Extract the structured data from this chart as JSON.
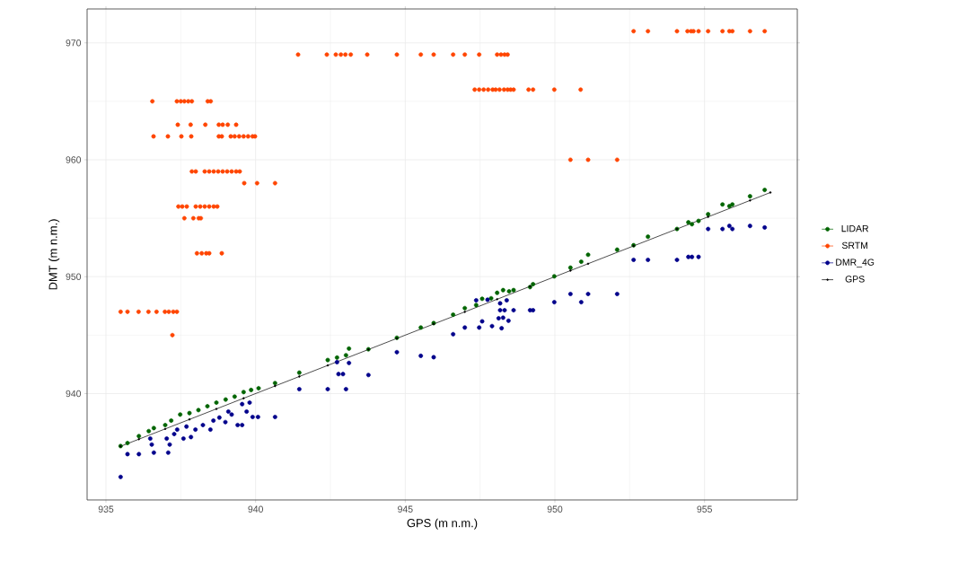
{
  "chart_data": {
    "type": "scatter",
    "xlabel": "GPS (m n.m.)",
    "ylabel": "DMT (m n.m.)",
    "xlim": [
      934.37,
      958.1
    ],
    "ylim": [
      930.9,
      972.9
    ],
    "xticks": [
      935,
      940,
      945,
      950,
      955
    ],
    "yticks": [
      940,
      950,
      960,
      970
    ],
    "grid": true,
    "legend": "right",
    "marker": "circle",
    "series": [
      {
        "name": "LIDAR",
        "color": "#006400",
        "x": [
          935.49,
          935.72,
          936.1,
          936.43,
          936.6,
          936.98,
          937.18,
          937.48,
          937.79,
          938.09,
          938.39,
          938.69,
          939.0,
          939.3,
          939.6,
          939.85,
          940.1,
          940.65,
          941.46,
          942.41,
          942.72,
          943.02,
          943.12,
          943.77,
          944.72,
          945.52,
          945.95,
          946.6,
          946.99,
          947.37,
          947.57,
          947.87,
          948.07,
          948.27,
          948.47,
          948.62,
          949.17,
          949.27,
          949.98,
          950.52,
          950.88,
          951.11,
          952.08,
          952.63,
          953.11,
          954.08,
          954.46,
          954.58,
          954.8,
          955.12,
          955.6,
          955.83,
          955.93,
          956.52,
          957.01
        ],
        "values": [
          935.51,
          935.77,
          936.36,
          936.79,
          937.05,
          937.31,
          937.69,
          938.21,
          938.33,
          938.59,
          938.92,
          939.23,
          939.49,
          939.74,
          940.13,
          940.31,
          940.46,
          940.9,
          941.79,
          942.87,
          943.08,
          943.28,
          943.85,
          943.79,
          944.77,
          945.65,
          946.03,
          946.75,
          947.31,
          947.57,
          948.11,
          948.15,
          948.62,
          948.85,
          948.75,
          948.85,
          949.11,
          949.36,
          950.03,
          950.77,
          951.28,
          951.88,
          952.31,
          952.69,
          953.42,
          954.08,
          954.65,
          954.49,
          954.77,
          955.34,
          956.18,
          956.03,
          956.18,
          956.88,
          957.42
        ]
      },
      {
        "name": "SRTM",
        "color": "#ff4500",
        "x": [
          941.42,
          942.38,
          942.68,
          942.85,
          943.0,
          943.18,
          943.73,
          944.72,
          945.52,
          945.95,
          946.6,
          946.99,
          947.47,
          948.07,
          948.2,
          948.32,
          948.42,
          936.55,
          937.37,
          937.5,
          937.62,
          937.75,
          937.87,
          938.4,
          938.5,
          937.4,
          937.83,
          938.32,
          938.77,
          938.9,
          939.07,
          939.35,
          936.59,
          937.07,
          937.52,
          937.85,
          938.77,
          938.87,
          939.17,
          939.3,
          939.45,
          939.6,
          939.75,
          939.9,
          939.98,
          937.87,
          938.0,
          938.3,
          938.45,
          938.6,
          938.75,
          938.9,
          939.05,
          939.2,
          939.35,
          939.47,
          939.62,
          940.05,
          940.65,
          937.42,
          937.55,
          937.7,
          938.0,
          938.15,
          938.3,
          938.45,
          938.6,
          938.72,
          937.62,
          937.92,
          938.1,
          938.17,
          938.04,
          938.2,
          938.35,
          938.45,
          938.87,
          935.49,
          935.72,
          936.09,
          936.42,
          936.69,
          936.97,
          937.1,
          937.25,
          937.37,
          937.22,
          952.63,
          953.11,
          954.08,
          954.43,
          954.55,
          954.63,
          954.8,
          955.12,
          955.6,
          955.83,
          955.93,
          956.52,
          957.01,
          947.32,
          947.47,
          947.62,
          947.77,
          947.92,
          948.02,
          948.15,
          948.3,
          948.42,
          948.52,
          948.62,
          949.12,
          949.27,
          949.98,
          950.86,
          950.52,
          951.11,
          952.08
        ],
        "values": [
          969,
          969,
          969,
          969,
          969,
          969,
          969,
          969,
          969,
          969,
          969,
          969,
          969,
          969,
          969,
          969,
          969,
          965,
          965,
          965,
          965,
          965,
          965,
          965,
          965,
          963,
          963,
          963,
          963,
          963,
          963,
          963,
          962,
          962,
          962,
          962,
          962,
          962,
          962,
          962,
          962,
          962,
          962,
          962,
          962,
          959,
          959,
          959,
          959,
          959,
          959,
          959,
          959,
          959,
          959,
          959,
          958,
          958,
          958,
          956,
          956,
          956,
          956,
          956,
          956,
          956,
          956,
          956,
          955,
          955,
          955,
          955,
          952,
          952,
          952,
          952,
          952,
          947,
          947,
          947,
          947,
          947,
          947,
          947,
          947,
          947,
          945,
          971,
          971,
          971,
          971,
          971,
          971,
          971,
          971,
          971,
          971,
          971,
          971,
          971,
          966,
          966,
          966,
          966,
          966,
          966,
          966,
          966,
          966,
          966,
          966,
          966,
          966,
          966,
          966,
          960,
          960,
          960
        ]
      },
      {
        "name": "DMR_4G",
        "color": "#00008b",
        "x": [
          935.49,
          935.72,
          936.1,
          936.6,
          937.08,
          936.48,
          936.53,
          937.03,
          937.13,
          937.28,
          937.59,
          937.84,
          937.38,
          937.69,
          937.99,
          938.24,
          938.49,
          938.59,
          938.79,
          938.99,
          939.2,
          939.4,
          939.55,
          939.7,
          939.8,
          939.9,
          940.08,
          940.65,
          939.55,
          939.09,
          941.46,
          942.41,
          943.02,
          942.77,
          942.92,
          942.72,
          943.12,
          943.77,
          944.72,
          945.52,
          945.95,
          946.6,
          946.99,
          947.47,
          947.57,
          947.9,
          948.22,
          948.12,
          948.27,
          948.45,
          948.17,
          948.32,
          948.62,
          948.17,
          948.39,
          947.37,
          947.75,
          949.17,
          949.27,
          949.98,
          950.52,
          950.88,
          951.11,
          952.08,
          952.63,
          953.11,
          954.08,
          954.46,
          954.58,
          954.8,
          955.12,
          955.6,
          955.83,
          955.93,
          956.52,
          957.01
        ],
        "values": [
          932.87,
          934.82,
          934.82,
          934.95,
          934.95,
          936.15,
          935.64,
          936.15,
          935.64,
          936.54,
          936.15,
          936.28,
          936.92,
          937.18,
          936.92,
          937.31,
          936.92,
          937.69,
          937.95,
          937.56,
          938.21,
          937.31,
          937.31,
          938.46,
          939.23,
          938.0,
          938.0,
          938.0,
          939.1,
          938.46,
          940.38,
          940.38,
          940.38,
          941.67,
          941.67,
          942.69,
          942.62,
          941.59,
          943.54,
          943.23,
          943.11,
          945.08,
          945.65,
          945.65,
          946.18,
          945.77,
          945.59,
          946.44,
          946.49,
          946.23,
          947.13,
          947.13,
          947.13,
          947.72,
          947.98,
          947.98,
          948.03,
          947.13,
          947.13,
          947.82,
          948.52,
          947.82,
          948.52,
          948.52,
          951.44,
          951.44,
          951.44,
          951.69,
          951.69,
          951.69,
          954.08,
          954.08,
          954.34,
          954.08,
          954.34,
          954.21
        ]
      },
      {
        "name": "GPS",
        "type": "line",
        "color": "#000000",
        "x": [
          935.49,
          936.1,
          936.98,
          937.79,
          938.69,
          939.6,
          940.65,
          941.46,
          942.41,
          943.77,
          944.72,
          945.95,
          946.99,
          948.07,
          949.17,
          950.52,
          951.11,
          952.63,
          954.08,
          955.12,
          956.52,
          957.2
        ],
        "values": [
          935.49,
          936.1,
          936.98,
          937.79,
          938.69,
          939.6,
          940.65,
          941.46,
          942.41,
          943.77,
          944.72,
          945.95,
          946.99,
          948.07,
          949.17,
          950.52,
          951.11,
          952.63,
          954.08,
          955.12,
          956.52,
          957.2
        ]
      }
    ]
  }
}
